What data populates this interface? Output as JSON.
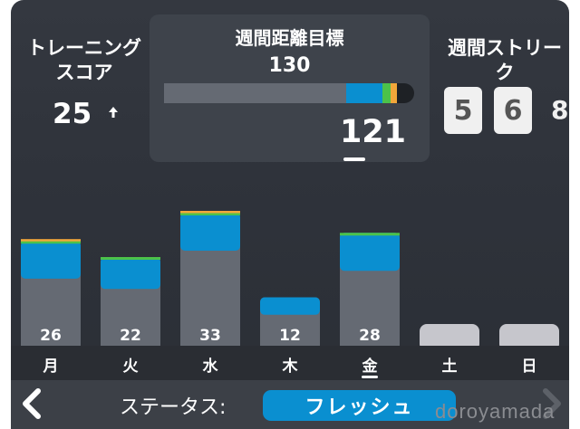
{
  "training_score": {
    "title": "トレーニングスコア",
    "value": "25"
  },
  "weekly_goal": {
    "title": "週間距離目標",
    "target": "130",
    "current": "121",
    "progress": 0.93
  },
  "streak": {
    "title": "週間ストリーク",
    "digits": [
      "5",
      "6"
    ],
    "peek_digit": "8"
  },
  "chart_data": {
    "type": "bar",
    "categories": [
      "月",
      "火",
      "水",
      "木",
      "金",
      "土",
      "日"
    ],
    "values": [
      26,
      22,
      33,
      12,
      28,
      null,
      null
    ],
    "selected_index": 4
  },
  "bottom": {
    "status_label": "ステータス:",
    "status_value": "フレッシュ"
  },
  "watermark": "doroyamada",
  "colors": {
    "background": "#2f333b",
    "accent": "#0a8fd0",
    "green": "#4cc24a",
    "orange": "#f2a73a",
    "bar_grey": "#656a73"
  },
  "icons": {
    "score_trend": "arrow-up-icon",
    "back": "chevron-left-icon",
    "forward": "chevron-right-icon"
  }
}
